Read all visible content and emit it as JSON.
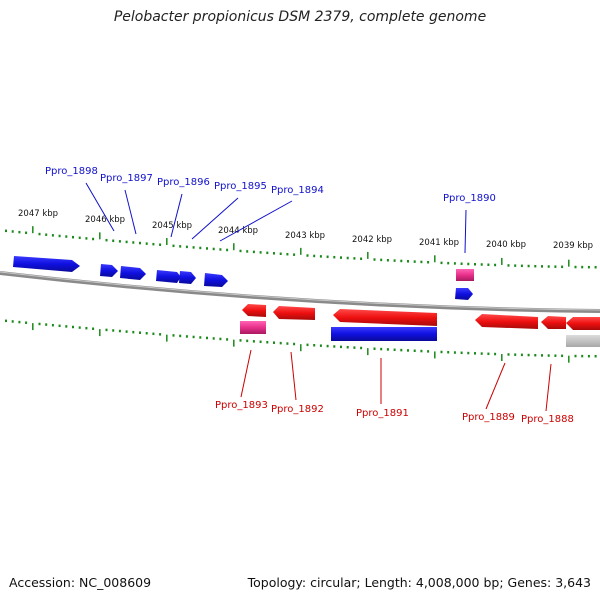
{
  "title": "Pelobacter propionicus DSM 2379, complete genome",
  "footer": {
    "accession": "Accession: NC_008609",
    "summary": "Topology: circular; Length: 4,008,000 bp; Genes: 3,643"
  },
  "colors": {
    "forward_gene": "#1010e0",
    "reverse_gene": "#ee1010",
    "rna_gene": "#e8308a",
    "pseudo_gene": "#bdbdbd",
    "tick": "#1a8a1a",
    "label_forward": "#1010cc",
    "label_reverse": "#cc0000",
    "backbone": "#8a8a8a"
  },
  "scale_labels": [
    "2047 kbp",
    "2046 kbp",
    "2045 kbp",
    "2044 kbp",
    "2043 kbp",
    "2042 kbp",
    "2041 kbp",
    "2040 kbp",
    "2039 kbp"
  ],
  "gene_labels_top": [
    "Ppro_1898",
    "Ppro_1897",
    "Ppro_1896",
    "Ppro_1895",
    "Ppro_1894",
    "Ppro_1890"
  ],
  "gene_labels_bottom": [
    "Ppro_1893",
    "Ppro_1892",
    "Ppro_1891",
    "Ppro_1889",
    "Ppro_1888"
  ]
}
